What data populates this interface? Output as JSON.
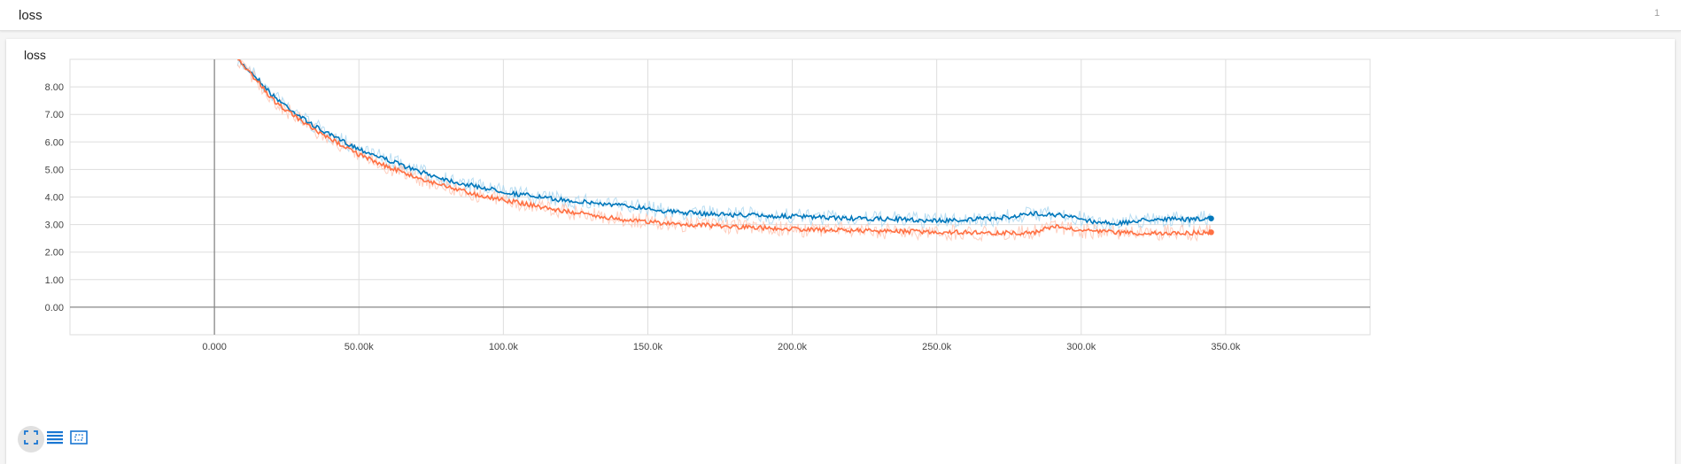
{
  "group": {
    "title": "loss",
    "count": "1"
  },
  "card": {
    "title": "loss"
  },
  "toolbar": {
    "buttons": [
      {
        "icon": "fit-domain-icon",
        "active": true
      },
      {
        "icon": "data-table-icon",
        "active": false
      },
      {
        "icon": "zoom-select-icon",
        "active": false
      }
    ]
  },
  "colors": {
    "series_blue": "#0077bb",
    "series_orange": "#ff7043",
    "series_blue_raw": "#a6d4ef",
    "series_orange_raw": "#ffc2ae",
    "grid": "#dddddd",
    "axis": "#888888",
    "button_icon": "#1976d2"
  },
  "chart_data": {
    "type": "line",
    "title": "loss",
    "xlabel": "",
    "ylabel": "",
    "xlim": [
      -50000,
      400000
    ],
    "ylim": [
      -1.0,
      9.0
    ],
    "grid": true,
    "x_ticks": [
      0,
      50000,
      100000,
      150000,
      200000,
      250000,
      300000,
      350000
    ],
    "x_tick_labels": [
      "0.000",
      "50.00k",
      "100.0k",
      "150.0k",
      "200.0k",
      "250.0k",
      "300.0k",
      "350.0k"
    ],
    "y_ticks": [
      0,
      1,
      2,
      3,
      4,
      5,
      6,
      7,
      8
    ],
    "y_tick_labels": [
      "0.00",
      "1.00",
      "2.00",
      "3.00",
      "4.00",
      "5.00",
      "6.00",
      "7.00",
      "8.00"
    ],
    "series": [
      {
        "color": "#0077bb",
        "x": [
          8000,
          15000,
          20000,
          25000,
          30000,
          35000,
          40000,
          45000,
          50000,
          55000,
          60000,
          65000,
          70000,
          75000,
          80000,
          85000,
          90000,
          95000,
          100000,
          105000,
          110000,
          115000,
          120000,
          125000,
          130000,
          135000,
          140000,
          145000,
          150000,
          155000,
          160000,
          165000,
          170000,
          175000,
          180000,
          185000,
          190000,
          195000,
          200000,
          205000,
          210000,
          215000,
          220000,
          225000,
          230000,
          235000,
          240000,
          245000,
          250000,
          255000,
          260000,
          265000,
          270000,
          275000,
          280000,
          285000,
          290000,
          295000,
          300000,
          305000,
          310000,
          315000,
          320000,
          325000,
          330000,
          335000,
          340000,
          345000
        ],
        "y": [
          9.0,
          8.3,
          7.7,
          7.3,
          6.9,
          6.55,
          6.25,
          6.0,
          5.75,
          5.55,
          5.35,
          5.15,
          4.95,
          4.8,
          4.65,
          4.5,
          4.4,
          4.3,
          4.2,
          4.1,
          4.05,
          3.95,
          3.9,
          3.85,
          3.8,
          3.75,
          3.7,
          3.65,
          3.6,
          3.5,
          3.45,
          3.42,
          3.4,
          3.38,
          3.35,
          3.35,
          3.32,
          3.3,
          3.3,
          3.28,
          3.25,
          3.25,
          3.22,
          3.2,
          3.2,
          3.2,
          3.18,
          3.15,
          3.15,
          3.15,
          3.18,
          3.2,
          3.22,
          3.28,
          3.35,
          3.4,
          3.38,
          3.3,
          3.2,
          3.1,
          3.05,
          3.05,
          3.15,
          3.2,
          3.2,
          3.18,
          3.2,
          3.22
        ]
      },
      {
        "color": "#ff7043",
        "x": [
          8000,
          15000,
          20000,
          25000,
          30000,
          35000,
          40000,
          45000,
          50000,
          55000,
          60000,
          65000,
          70000,
          75000,
          80000,
          85000,
          90000,
          95000,
          100000,
          105000,
          110000,
          115000,
          120000,
          125000,
          130000,
          135000,
          140000,
          145000,
          150000,
          155000,
          160000,
          165000,
          170000,
          175000,
          180000,
          185000,
          190000,
          195000,
          200000,
          205000,
          210000,
          215000,
          220000,
          225000,
          230000,
          235000,
          240000,
          245000,
          250000,
          255000,
          260000,
          265000,
          270000,
          275000,
          280000,
          285000,
          290000,
          295000,
          300000,
          305000,
          310000,
          315000,
          320000,
          325000,
          330000,
          335000,
          340000,
          345000
        ],
        "y": [
          9.0,
          8.2,
          7.55,
          7.15,
          6.75,
          6.4,
          6.1,
          5.85,
          5.55,
          5.3,
          5.1,
          4.9,
          4.7,
          4.55,
          4.4,
          4.25,
          4.1,
          4.0,
          3.9,
          3.8,
          3.7,
          3.6,
          3.5,
          3.42,
          3.35,
          3.28,
          3.2,
          3.15,
          3.1,
          3.05,
          3.02,
          3.0,
          2.98,
          2.95,
          2.92,
          2.9,
          2.88,
          2.85,
          2.85,
          2.82,
          2.8,
          2.8,
          2.78,
          2.78,
          2.76,
          2.75,
          2.75,
          2.74,
          2.73,
          2.72,
          2.72,
          2.7,
          2.7,
          2.7,
          2.7,
          2.72,
          2.95,
          2.85,
          2.78,
          2.75,
          2.72,
          2.7,
          2.68,
          2.68,
          2.7,
          2.7,
          2.7,
          2.72
        ]
      }
    ]
  }
}
